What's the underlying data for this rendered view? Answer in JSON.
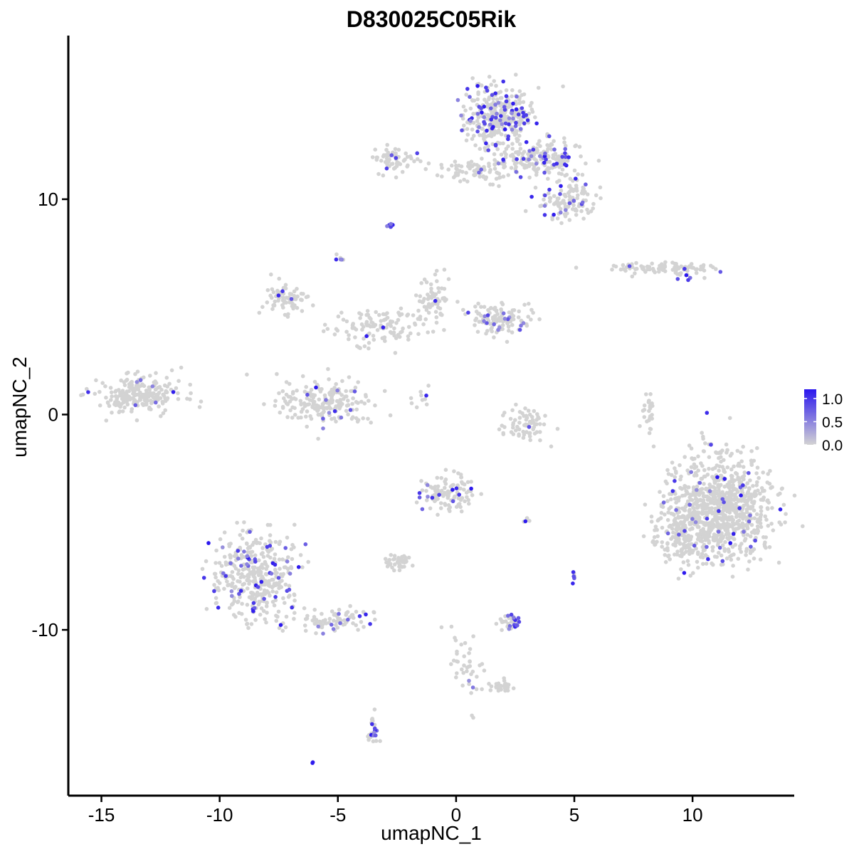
{
  "chart_data": {
    "type": "scatter",
    "title": "D830025C05Rik",
    "xlabel": "umapNC_1",
    "ylabel": "umapNC_2",
    "xlim": [
      -16.4,
      14.3
    ],
    "ylim": [
      -17.7,
      17.6
    ],
    "x_ticks": [
      -15,
      -10,
      -5,
      0,
      5,
      10
    ],
    "x_tick_labels": [
      "-15",
      "-10",
      "-5",
      "0",
      "5",
      "10"
    ],
    "y_ticks": [
      -10,
      0,
      10
    ],
    "y_tick_labels": [
      "-10",
      "0",
      "10"
    ],
    "grid": false,
    "legend": {
      "position": "right",
      "type": "colorbar",
      "ticks": [
        1.0,
        0.5,
        0.0
      ],
      "tick_labels": [
        "1.0",
        "0.5",
        "0.0"
      ],
      "range": [
        0,
        1.2
      ]
    },
    "colors": {
      "low": "#d3d3d3",
      "high": "#2a16ee"
    },
    "point_size_note": "small dots",
    "clusters": [
      {
        "cx": 1.8,
        "cy": 13.8,
        "rx": 1.3,
        "ry": 1.3,
        "n": 340,
        "expr_frac": 0.22
      },
      {
        "cx": 3.6,
        "cy": 11.9,
        "rx": 1.6,
        "ry": 0.7,
        "n": 180,
        "expr_frac": 0.12
      },
      {
        "cx": 4.8,
        "cy": 10.0,
        "rx": 1.0,
        "ry": 0.9,
        "n": 120,
        "expr_frac": 0.15
      },
      {
        "cx": 0.8,
        "cy": 11.3,
        "rx": 1.6,
        "ry": 0.5,
        "n": 80,
        "expr_frac": 0.04
      },
      {
        "cx": -2.6,
        "cy": 11.8,
        "rx": 0.8,
        "ry": 0.6,
        "n": 60,
        "expr_frac": 0.06
      },
      {
        "cx": -2.8,
        "cy": 8.8,
        "rx": 0.2,
        "ry": 0.1,
        "n": 8,
        "expr_frac": 0.9
      },
      {
        "cx": 8.8,
        "cy": 6.8,
        "rx": 1.8,
        "ry": 0.25,
        "n": 90,
        "expr_frac": 0.05
      },
      {
        "cx": -7.2,
        "cy": 5.4,
        "rx": 0.9,
        "ry": 0.6,
        "n": 70,
        "expr_frac": 0.07
      },
      {
        "cx": -1.0,
        "cy": 5.3,
        "rx": 0.8,
        "ry": 1.0,
        "n": 70,
        "expr_frac": 0.03
      },
      {
        "cx": 1.8,
        "cy": 4.4,
        "rx": 1.2,
        "ry": 0.7,
        "n": 120,
        "expr_frac": 0.1
      },
      {
        "cx": -3.5,
        "cy": 4.0,
        "rx": 1.6,
        "ry": 0.8,
        "n": 110,
        "expr_frac": 0.03
      },
      {
        "cx": -5.5,
        "cy": 0.7,
        "rx": 1.8,
        "ry": 1.0,
        "n": 200,
        "expr_frac": 0.05
      },
      {
        "cx": -13.4,
        "cy": 0.9,
        "rx": 1.6,
        "ry": 0.8,
        "n": 220,
        "expr_frac": 0.03
      },
      {
        "cx": 2.9,
        "cy": -0.5,
        "rx": 0.9,
        "ry": 0.7,
        "n": 70,
        "expr_frac": 0.02
      },
      {
        "cx": 8.1,
        "cy": 0.0,
        "rx": 0.3,
        "ry": 1.1,
        "n": 25,
        "expr_frac": 0.0
      },
      {
        "cx": 11.2,
        "cy": -4.5,
        "rx": 1.9,
        "ry": 2.2,
        "n": 900,
        "expr_frac": 0.025
      },
      {
        "cx": 9.3,
        "cy": -5.6,
        "rx": 0.9,
        "ry": 1.2,
        "n": 120,
        "expr_frac": 0.02
      },
      {
        "cx": -0.3,
        "cy": -3.7,
        "rx": 1.0,
        "ry": 0.8,
        "n": 110,
        "expr_frac": 0.1
      },
      {
        "cx": -8.6,
        "cy": -7.5,
        "rx": 1.6,
        "ry": 2.0,
        "n": 380,
        "expr_frac": 0.12
      },
      {
        "cx": -5.5,
        "cy": -9.5,
        "rx": 1.8,
        "ry": 0.5,
        "n": 90,
        "expr_frac": 0.12
      },
      {
        "cx": -2.5,
        "cy": -6.8,
        "rx": 0.5,
        "ry": 0.3,
        "n": 40,
        "expr_frac": 0.0
      },
      {
        "cx": 2.3,
        "cy": -9.6,
        "rx": 0.5,
        "ry": 0.4,
        "n": 40,
        "expr_frac": 0.15
      },
      {
        "cx": 0.5,
        "cy": -11.5,
        "rx": 0.6,
        "ry": 1.4,
        "n": 40,
        "expr_frac": 0.03
      },
      {
        "cx": 2.0,
        "cy": -12.6,
        "rx": 0.6,
        "ry": 0.25,
        "n": 30,
        "expr_frac": 0.0
      },
      {
        "cx": -3.5,
        "cy": -14.6,
        "rx": 0.3,
        "ry": 0.6,
        "n": 25,
        "expr_frac": 0.3
      },
      {
        "cx": 5.0,
        "cy": -7.5,
        "rx": 0.15,
        "ry": 0.3,
        "n": 8,
        "expr_frac": 0.4
      },
      {
        "cx": 2.9,
        "cy": -4.9,
        "rx": 0.3,
        "ry": 0.1,
        "n": 6,
        "expr_frac": 0.2
      },
      {
        "cx": -4.9,
        "cy": 7.2,
        "rx": 0.2,
        "ry": 0.2,
        "n": 6,
        "expr_frac": 0.3
      },
      {
        "cx": -6.0,
        "cy": -16.2,
        "rx": 0.1,
        "ry": 0.1,
        "n": 2,
        "expr_frac": 1.0
      },
      {
        "cx": 0.7,
        "cy": -14.0,
        "rx": 0.1,
        "ry": 0.1,
        "n": 2,
        "expr_frac": 0.5
      },
      {
        "cx": -1.4,
        "cy": 0.9,
        "rx": 0.6,
        "ry": 0.6,
        "n": 10,
        "expr_frac": 0.2
      },
      {
        "cx": 9.5,
        "cy": 6.4,
        "rx": 0.4,
        "ry": 0.2,
        "n": 6,
        "expr_frac": 0.6
      }
    ]
  }
}
